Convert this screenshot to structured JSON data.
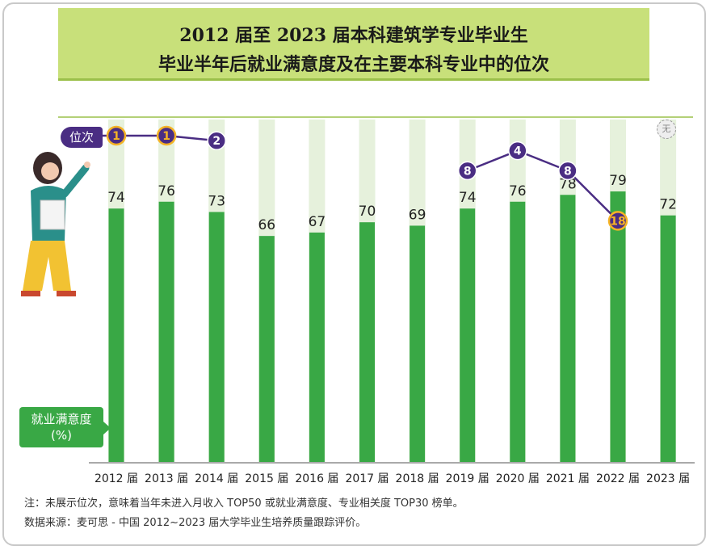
{
  "header": {
    "title_line1": "2012 届至 2023 届本科建筑学专业毕业生",
    "title_line2": "毕业半年后就业满意度及在主要本科专业中的位次"
  },
  "labels": {
    "rank_tag": "位次",
    "satisfaction_tag_line1": "就业满意度",
    "satisfaction_tag_line2": "(%)",
    "corner_icon": "无"
  },
  "footer": {
    "note": "注：未展示位次，意味着当年未进入月收入 TOP50 或就业满意度、专业相关度 TOP30 榜单。",
    "source": "数据来源：麦可思 - 中国 2012~2023 届大学毕业生培养质量跟踪评价。"
  },
  "colors": {
    "bar": "#39a845",
    "bar_track": "#e6f1dc",
    "rank_line": "#4a2d83",
    "rank_highlight": "#f5b325",
    "title_bg": "#c8e07a"
  },
  "chart_data": {
    "type": "bar",
    "categories": [
      "2012 届",
      "2013 届",
      "2014 届",
      "2015 届",
      "2016 届",
      "2017 届",
      "2018 届",
      "2019 届",
      "2020 届",
      "2021 届",
      "2022 届",
      "2023 届"
    ],
    "series": [
      {
        "values": [
          74,
          76,
          73,
          66,
          67,
          70,
          69,
          74,
          76,
          78,
          79,
          72
        ]
      }
    ],
    "rank_series": {
      "values": [
        1,
        1,
        2,
        null,
        null,
        null,
        null,
        8,
        4,
        8,
        18,
        null
      ],
      "highlighted": [
        true,
        true,
        false,
        false,
        false,
        false,
        false,
        false,
        false,
        false,
        true,
        false
      ]
    },
    "title": "2012 届至 2023 届本科建筑学专业毕业生毕业半年后就业满意度及在主要本科专业中的位次",
    "xlabel": "",
    "ylabel": "就业满意度 (%)",
    "ylim": [
      0,
      100
    ],
    "grid": false,
    "legend": "none"
  }
}
